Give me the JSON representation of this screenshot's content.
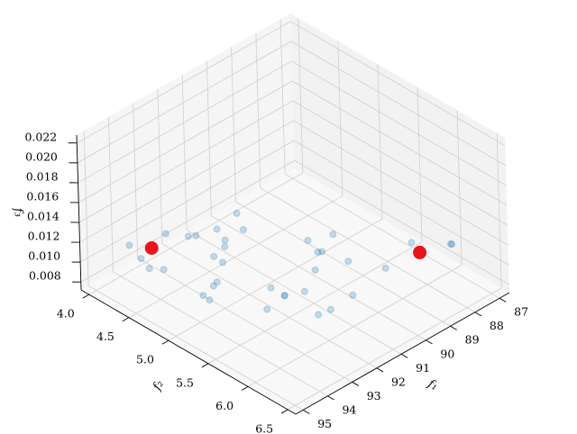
{
  "chart_data": {
    "type": "scatter3d",
    "xlabel": "f₁",
    "ylabel": "f₂",
    "zlabel": "f₃",
    "xlim": [
      86.6,
      95.3
    ],
    "ylim": [
      3.9,
      6.6
    ],
    "zlim": [
      0.0072,
      0.0228
    ],
    "xticks": [
      87,
      88,
      89,
      90,
      91,
      92,
      93,
      94,
      95
    ],
    "yticks": [
      {
        "value": 4,
        "label": "4.0"
      },
      4.5,
      {
        "value": 5,
        "label": "5.0"
      },
      5.5,
      {
        "value": 6,
        "label": "6.0"
      },
      6.5
    ],
    "zticks": [
      0.008,
      {
        "value": 0.01,
        "label": "0.010"
      },
      0.012,
      0.014,
      0.016,
      0.018,
      {
        "value": 0.02,
        "label": "0.020"
      },
      0.022
    ],
    "grid": true,
    "series": [
      {
        "color": "#1f77b4",
        "alpha": 0.25,
        "size": 3.5,
        "x": [
          93.35,
          93.58,
          93.76,
          93.5,
          92.19,
          91.82,
          91.64,
          90.98,
          91.2,
          91.44,
          90.01,
          90.45,
          92.01,
          92.04,
          92.85,
          93.06,
          93.61,
          93.64,
          92.79,
          91.95,
          91.95,
          91.94,
          91.39,
          90.41,
          89.51,
          89.72,
          89.62,
          88.78,
          89.42,
          91.49,
          91.93,
          90.53,
          88.9,
          87.46,
          86.69,
          86.7
        ],
        "y": [
          3.91,
          4.13,
          4.29,
          4.39,
          4.01,
          4.18,
          4.22,
          4.28,
          4.45,
          4.52,
          4.23,
          4.45,
          4.56,
          4.68,
          4.86,
          4.88,
          4.92,
          5.01,
          5.47,
          5.26,
          5.43,
          5.43,
          5.51,
          5.34,
          4.97,
          5.16,
          5.18,
          5.06,
          5.45,
          5.87,
          5.85,
          5.85,
          5.76,
          5.64,
          5.91,
          5.9
        ],
        "z": [
          0.009,
          0.009,
          0.009,
          0.009,
          0.009,
          0.009,
          0.009,
          0.009,
          0.009,
          0.009,
          0.009,
          0.009,
          0.009,
          0.009,
          0.009,
          0.009,
          0.009,
          0.009,
          0.009,
          0.009,
          0.009,
          0.009,
          0.009,
          0.009,
          0.009,
          0.009,
          0.009,
          0.009,
          0.009,
          0.009,
          0.009,
          0.009,
          0.009,
          0.009,
          0.009,
          0.009
        ]
      },
      {
        "color": "#e8161b",
        "alpha": 1,
        "size": 7,
        "x": [
          92.99,
          87.64
        ],
        "y": [
          4.08,
          5.8
        ],
        "z": [
          0.009,
          0.009
        ]
      }
    ]
  }
}
